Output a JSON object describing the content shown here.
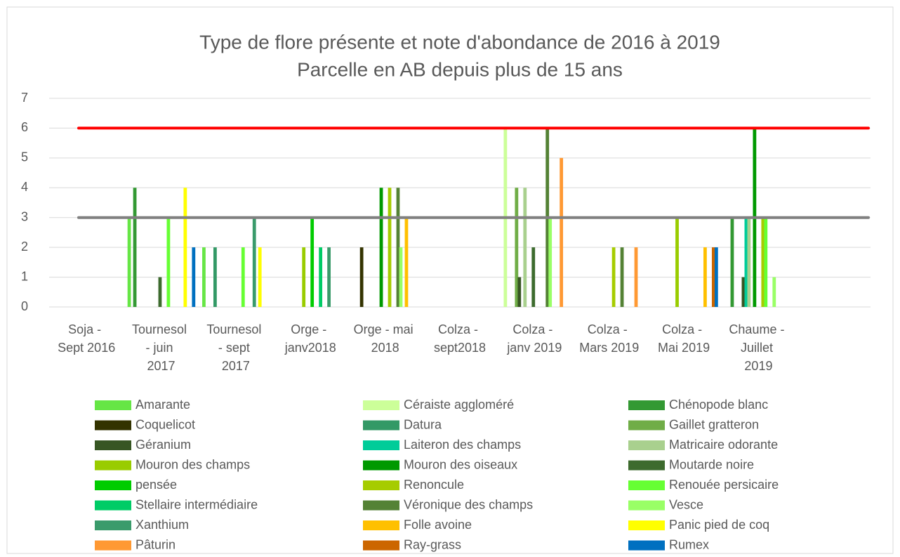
{
  "chart_data": {
    "type": "bar",
    "title": "Type de flore présente et note d'abondance de 2016 à 2019",
    "subtitle": "Parcelle en AB depuis plus de 15 ans",
    "categories": [
      "Soja - Sept 2016",
      "Tournesol - juin 2017",
      "Tournesol - sept 2017",
      "Orge - janv2018",
      "Orge - mai 2018",
      "Colza - sept2018",
      "Colza - janv 2019",
      "Colza - Mars 2019",
      "Colza - Mai 2019",
      "Chaume - Juillet 2019",
      null
    ],
    "ylim": [
      0,
      7
    ],
    "yticks": [
      0,
      1,
      2,
      3,
      4,
      5,
      6,
      7
    ],
    "grid": true,
    "reference_lines": [
      {
        "value": 6,
        "color": "#ff0000"
      },
      {
        "value": 3,
        "color": "#808080"
      }
    ],
    "series": [
      {
        "name": "Amarante",
        "color": "#66e645",
        "values": [
          null,
          3,
          2,
          null,
          null,
          null,
          null,
          null,
          null,
          null,
          null
        ]
      },
      {
        "name": "Céraiste aggloméré",
        "color": "#ccff99",
        "values": [
          null,
          null,
          null,
          null,
          null,
          null,
          6,
          null,
          null,
          null,
          null
        ]
      },
      {
        "name": "Chénopode blanc",
        "color": "#339933",
        "values": [
          null,
          4,
          null,
          null,
          null,
          null,
          null,
          null,
          null,
          3,
          null
        ]
      },
      {
        "name": "Coquelicot",
        "color": "#333300",
        "values": [
          null,
          null,
          null,
          null,
          2,
          null,
          null,
          null,
          null,
          null,
          null
        ]
      },
      {
        "name": "Datura",
        "color": "#339966",
        "values": [
          null,
          null,
          2,
          null,
          null,
          null,
          null,
          null,
          null,
          null,
          null
        ]
      },
      {
        "name": "Gaillet gratteron",
        "color": "#70ad47",
        "values": [
          null,
          null,
          null,
          null,
          null,
          null,
          4,
          null,
          null,
          null,
          null
        ]
      },
      {
        "name": "Géranium",
        "color": "#375623",
        "values": [
          null,
          null,
          null,
          null,
          null,
          null,
          1,
          null,
          null,
          1,
          null
        ]
      },
      {
        "name": "Laiteron des champs",
        "color": "#00cc99",
        "values": [
          null,
          null,
          null,
          null,
          null,
          null,
          null,
          null,
          null,
          3,
          null
        ]
      },
      {
        "name": "Matricaire odorante",
        "color": "#a9d08e",
        "values": [
          null,
          null,
          null,
          null,
          null,
          null,
          4,
          null,
          null,
          3,
          null
        ]
      },
      {
        "name": "Mouron des champs",
        "color": "#99cc00",
        "values": [
          null,
          null,
          null,
          2,
          null,
          null,
          null,
          null,
          3,
          null,
          null
        ]
      },
      {
        "name": "Mouron des oiseaux",
        "color": "#009900",
        "values": [
          null,
          null,
          null,
          null,
          4,
          null,
          null,
          null,
          null,
          6,
          null
        ]
      },
      {
        "name": "Moutarde noire",
        "color": "#3d6b2e",
        "values": [
          null,
          1,
          null,
          null,
          null,
          null,
          2,
          null,
          null,
          null,
          null
        ]
      },
      {
        "name": "pensée",
        "color": "#00cc00",
        "values": [
          null,
          null,
          null,
          3,
          null,
          null,
          null,
          null,
          null,
          null,
          null
        ]
      },
      {
        "name": "Renoncule",
        "color": "#a6cc00",
        "values": [
          null,
          null,
          null,
          null,
          4,
          null,
          null,
          2,
          null,
          3,
          null
        ]
      },
      {
        "name": "Renouée persicaire",
        "color": "#66ff33",
        "values": [
          null,
          3,
          2,
          null,
          null,
          null,
          null,
          null,
          null,
          3,
          null
        ]
      },
      {
        "name": "Stellaire intermédiaire",
        "color": "#00cc66",
        "values": [
          null,
          null,
          null,
          2,
          null,
          null,
          null,
          null,
          null,
          null,
          null
        ]
      },
      {
        "name": "Véronique des champs",
        "color": "#548235",
        "values": [
          null,
          null,
          null,
          null,
          4,
          null,
          6,
          2,
          null,
          null,
          null
        ]
      },
      {
        "name": "Vesce",
        "color": "#99ff66",
        "values": [
          null,
          null,
          null,
          null,
          2,
          null,
          3,
          null,
          null,
          1,
          null
        ]
      },
      {
        "name": "Xanthium",
        "color": "#3a9b6b",
        "values": [
          null,
          null,
          3,
          2,
          null,
          null,
          null,
          null,
          null,
          null,
          null
        ]
      },
      {
        "name": "Folle avoine",
        "color": "#ffc000",
        "values": [
          null,
          null,
          null,
          null,
          3,
          null,
          null,
          null,
          2,
          null,
          null
        ]
      },
      {
        "name": "Panic pied de coq",
        "color": "#ffff00",
        "values": [
          null,
          4,
          2,
          null,
          null,
          null,
          null,
          null,
          null,
          null,
          null
        ]
      },
      {
        "name": "Pâturin",
        "color": "#ff9933",
        "values": [
          null,
          null,
          null,
          null,
          null,
          null,
          5,
          2,
          null,
          null,
          null
        ]
      },
      {
        "name": "Ray-grass",
        "color": "#cc6600",
        "values": [
          null,
          null,
          null,
          null,
          null,
          null,
          null,
          null,
          2,
          null,
          null
        ]
      },
      {
        "name": "Rumex",
        "color": "#0070c0",
        "values": [
          null,
          2,
          null,
          null,
          null,
          null,
          null,
          null,
          2,
          null,
          null
        ]
      }
    ]
  }
}
